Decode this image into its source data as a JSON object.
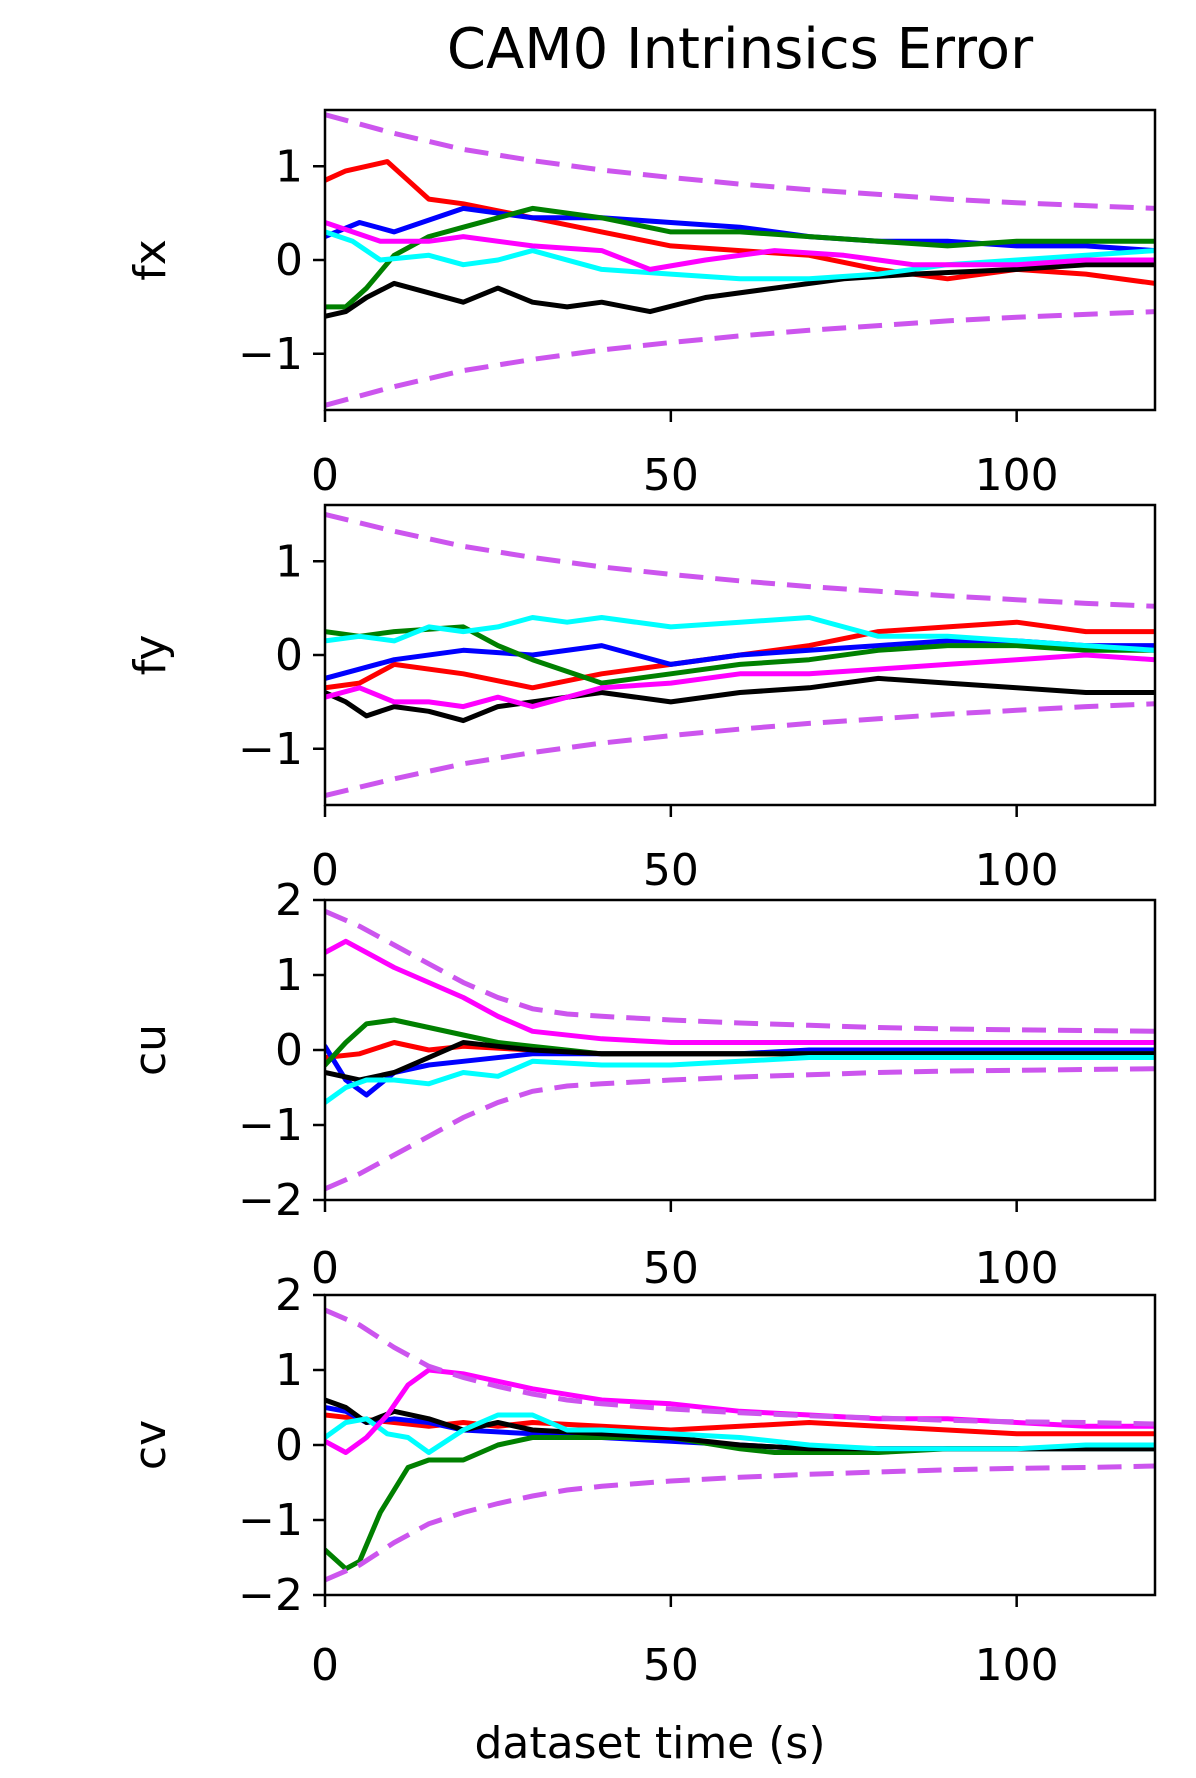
{
  "figure_title": "CAM0 Intrinsics Error",
  "chart_data": [
    {
      "type": "line",
      "ylabel": "fx",
      "xlabel": "",
      "xlim": [
        0,
        120
      ],
      "ylim": [
        -1.6,
        1.6
      ],
      "xticks": [
        0,
        50,
        100
      ],
      "yticks": [
        -1,
        0,
        1
      ],
      "bound_color": "#cc55ee",
      "bounds": {
        "x": [
          0,
          10,
          20,
          30,
          40,
          50,
          60,
          70,
          80,
          90,
          100,
          110,
          120
        ],
        "upper": [
          1.55,
          1.35,
          1.18,
          1.06,
          0.96,
          0.88,
          0.81,
          0.75,
          0.7,
          0.65,
          0.61,
          0.58,
          0.55
        ]
      },
      "series": [
        {
          "color": "#ff0000",
          "x": [
            0,
            3,
            6,
            9,
            12,
            15,
            20,
            30,
            40,
            50,
            60,
            70,
            80,
            90,
            100,
            110,
            120
          ],
          "y": [
            0.85,
            0.95,
            1.0,
            1.05,
            0.85,
            0.65,
            0.6,
            0.45,
            0.3,
            0.15,
            0.1,
            0.05,
            -0.1,
            -0.2,
            -0.1,
            -0.15,
            -0.25
          ]
        },
        {
          "color": "#0000ff",
          "x": [
            0,
            5,
            10,
            20,
            30,
            40,
            50,
            60,
            70,
            80,
            90,
            100,
            110,
            120
          ],
          "y": [
            0.25,
            0.4,
            0.3,
            0.55,
            0.45,
            0.45,
            0.4,
            0.35,
            0.25,
            0.2,
            0.2,
            0.15,
            0.15,
            0.1
          ]
        },
        {
          "color": "#008000",
          "x": [
            0,
            3,
            6,
            10,
            15,
            20,
            25,
            30,
            40,
            50,
            60,
            70,
            80,
            90,
            100,
            110,
            120
          ],
          "y": [
            -0.5,
            -0.5,
            -0.3,
            0.05,
            0.25,
            0.35,
            0.45,
            0.55,
            0.45,
            0.3,
            0.3,
            0.25,
            0.2,
            0.15,
            0.2,
            0.2,
            0.2
          ]
        },
        {
          "color": "#000000",
          "x": [
            0,
            3,
            6,
            10,
            15,
            20,
            25,
            30,
            35,
            40,
            47,
            55,
            65,
            75,
            85,
            100,
            110,
            120
          ],
          "y": [
            -0.6,
            -0.55,
            -0.4,
            -0.25,
            -0.35,
            -0.45,
            -0.3,
            -0.45,
            -0.5,
            -0.45,
            -0.55,
            -0.4,
            -0.3,
            -0.2,
            -0.15,
            -0.1,
            -0.05,
            -0.05
          ]
        },
        {
          "color": "#00ffff",
          "x": [
            0,
            4,
            8,
            15,
            20,
            25,
            30,
            40,
            50,
            60,
            70,
            80,
            90,
            100,
            110,
            120
          ],
          "y": [
            0.3,
            0.2,
            0.0,
            0.05,
            -0.05,
            0.0,
            0.1,
            -0.1,
            -0.15,
            -0.2,
            -0.2,
            -0.15,
            -0.05,
            0.0,
            0.05,
            0.1
          ]
        },
        {
          "color": "#ff00ff",
          "x": [
            0,
            4,
            8,
            15,
            20,
            30,
            40,
            47,
            55,
            65,
            75,
            85,
            100,
            110,
            120
          ],
          "y": [
            0.4,
            0.3,
            0.2,
            0.2,
            0.25,
            0.15,
            0.1,
            -0.1,
            0.0,
            0.1,
            0.05,
            -0.05,
            -0.05,
            0.0,
            0.0
          ]
        }
      ]
    },
    {
      "type": "line",
      "ylabel": "fy",
      "xlabel": "",
      "xlim": [
        0,
        120
      ],
      "ylim": [
        -1.6,
        1.6
      ],
      "xticks": [
        0,
        50,
        100
      ],
      "yticks": [
        -1,
        0,
        1
      ],
      "bound_color": "#cc55ee",
      "bounds": {
        "x": [
          0,
          10,
          20,
          30,
          40,
          50,
          60,
          70,
          80,
          90,
          100,
          110,
          120
        ],
        "upper": [
          1.5,
          1.32,
          1.16,
          1.04,
          0.94,
          0.86,
          0.79,
          0.73,
          0.68,
          0.63,
          0.59,
          0.55,
          0.52
        ]
      },
      "series": [
        {
          "color": "#ff0000",
          "x": [
            0,
            5,
            10,
            20,
            30,
            40,
            50,
            60,
            70,
            80,
            90,
            100,
            110,
            120
          ],
          "y": [
            -0.35,
            -0.3,
            -0.1,
            -0.2,
            -0.35,
            -0.2,
            -0.1,
            0.0,
            0.1,
            0.25,
            0.3,
            0.35,
            0.25,
            0.25
          ]
        },
        {
          "color": "#0000ff",
          "x": [
            0,
            5,
            10,
            20,
            30,
            40,
            50,
            60,
            70,
            80,
            90,
            100,
            110,
            120
          ],
          "y": [
            -0.25,
            -0.15,
            -0.05,
            0.05,
            0.0,
            0.1,
            -0.1,
            0.0,
            0.05,
            0.1,
            0.15,
            0.15,
            0.1,
            0.1
          ]
        },
        {
          "color": "#008000",
          "x": [
            0,
            5,
            10,
            20,
            25,
            30,
            40,
            50,
            60,
            70,
            80,
            90,
            100,
            110,
            120
          ],
          "y": [
            0.25,
            0.2,
            0.25,
            0.3,
            0.1,
            -0.05,
            -0.3,
            -0.2,
            -0.1,
            -0.05,
            0.05,
            0.1,
            0.1,
            0.05,
            0.05
          ]
        },
        {
          "color": "#000000",
          "x": [
            0,
            3,
            6,
            10,
            15,
            20,
            25,
            30,
            40,
            50,
            60,
            70,
            80,
            90,
            100,
            110,
            120
          ],
          "y": [
            -0.4,
            -0.5,
            -0.65,
            -0.55,
            -0.6,
            -0.7,
            -0.55,
            -0.5,
            -0.4,
            -0.5,
            -0.4,
            -0.35,
            -0.25,
            -0.3,
            -0.35,
            -0.4,
            -0.4
          ]
        },
        {
          "color": "#00ffff",
          "x": [
            0,
            5,
            10,
            15,
            20,
            25,
            30,
            35,
            40,
            50,
            60,
            70,
            80,
            90,
            100,
            110,
            120
          ],
          "y": [
            0.15,
            0.2,
            0.15,
            0.3,
            0.25,
            0.3,
            0.4,
            0.35,
            0.4,
            0.3,
            0.35,
            0.4,
            0.2,
            0.2,
            0.15,
            0.1,
            0.05
          ]
        },
        {
          "color": "#ff00ff",
          "x": [
            0,
            5,
            10,
            15,
            20,
            25,
            30,
            40,
            50,
            60,
            70,
            80,
            90,
            100,
            110,
            120
          ],
          "y": [
            -0.45,
            -0.35,
            -0.5,
            -0.5,
            -0.55,
            -0.45,
            -0.55,
            -0.35,
            -0.3,
            -0.2,
            -0.2,
            -0.15,
            -0.1,
            -0.05,
            0.0,
            -0.05
          ]
        }
      ]
    },
    {
      "type": "line",
      "ylabel": "cu",
      "xlabel": "",
      "xlim": [
        0,
        120
      ],
      "ylim": [
        -2,
        2
      ],
      "xticks": [
        0,
        50,
        100
      ],
      "yticks": [
        -2,
        -1,
        0,
        1,
        2
      ],
      "bound_color": "#cc55ee",
      "bounds": {
        "x": [
          0,
          5,
          10,
          15,
          20,
          25,
          30,
          35,
          40,
          50,
          60,
          70,
          80,
          90,
          100,
          110,
          120
        ],
        "upper": [
          1.85,
          1.65,
          1.4,
          1.15,
          0.9,
          0.7,
          0.55,
          0.48,
          0.45,
          0.4,
          0.36,
          0.33,
          0.3,
          0.28,
          0.27,
          0.26,
          0.25
        ]
      },
      "series": [
        {
          "color": "#ff0000",
          "x": [
            0,
            5,
            10,
            15,
            20,
            30,
            40,
            50,
            60,
            70,
            80,
            90,
            100,
            110,
            120
          ],
          "y": [
            -0.1,
            -0.05,
            0.1,
            0.0,
            0.05,
            0.0,
            -0.05,
            -0.05,
            -0.05,
            -0.05,
            -0.05,
            -0.05,
            -0.05,
            -0.05,
            -0.05
          ]
        },
        {
          "color": "#0000ff",
          "x": [
            0,
            3,
            6,
            10,
            15,
            20,
            30,
            40,
            50,
            60,
            70,
            80,
            90,
            100,
            110,
            120
          ],
          "y": [
            0.05,
            -0.4,
            -0.6,
            -0.3,
            -0.2,
            -0.15,
            -0.05,
            -0.05,
            -0.05,
            -0.05,
            0.0,
            0.0,
            0.0,
            0.0,
            0.0,
            0.0
          ]
        },
        {
          "color": "#008000",
          "x": [
            0,
            3,
            6,
            10,
            15,
            20,
            25,
            30,
            40,
            50,
            60,
            70,
            80,
            90,
            100,
            110,
            120
          ],
          "y": [
            -0.2,
            0.1,
            0.35,
            0.4,
            0.3,
            0.2,
            0.1,
            0.05,
            -0.05,
            -0.05,
            -0.05,
            -0.05,
            -0.05,
            -0.05,
            -0.05,
            -0.05,
            -0.05
          ]
        },
        {
          "color": "#000000",
          "x": [
            0,
            5,
            10,
            15,
            20,
            25,
            30,
            40,
            50,
            60,
            70,
            80,
            90,
            100,
            110,
            120
          ],
          "y": [
            -0.3,
            -0.4,
            -0.3,
            -0.1,
            0.1,
            0.05,
            0.0,
            -0.05,
            -0.05,
            -0.05,
            -0.05,
            -0.05,
            -0.05,
            -0.05,
            -0.05,
            -0.05
          ]
        },
        {
          "color": "#00ffff",
          "x": [
            0,
            3,
            6,
            10,
            15,
            20,
            25,
            30,
            40,
            50,
            60,
            70,
            80,
            90,
            100,
            110,
            120
          ],
          "y": [
            -0.7,
            -0.5,
            -0.4,
            -0.4,
            -0.45,
            -0.3,
            -0.35,
            -0.15,
            -0.2,
            -0.2,
            -0.15,
            -0.1,
            -0.1,
            -0.1,
            -0.1,
            -0.1,
            -0.1
          ]
        },
        {
          "color": "#ff00ff",
          "x": [
            0,
            3,
            6,
            10,
            15,
            20,
            25,
            30,
            40,
            50,
            60,
            70,
            80,
            90,
            100,
            110,
            120
          ],
          "y": [
            1.3,
            1.45,
            1.3,
            1.1,
            0.9,
            0.7,
            0.45,
            0.25,
            0.15,
            0.1,
            0.1,
            0.1,
            0.1,
            0.1,
            0.1,
            0.1,
            0.1
          ]
        }
      ]
    },
    {
      "type": "line",
      "ylabel": "cv",
      "xlabel": "dataset time (s)",
      "xlim": [
        0,
        120
      ],
      "ylim": [
        -2,
        2
      ],
      "xticks": [
        0,
        50,
        100
      ],
      "yticks": [
        -2,
        -1,
        0,
        1,
        2
      ],
      "bound_color": "#cc55ee",
      "bounds": {
        "x": [
          0,
          5,
          10,
          15,
          20,
          25,
          30,
          35,
          40,
          50,
          60,
          70,
          80,
          90,
          100,
          110,
          120
        ],
        "upper": [
          1.8,
          1.6,
          1.3,
          1.05,
          0.9,
          0.78,
          0.68,
          0.6,
          0.55,
          0.48,
          0.43,
          0.39,
          0.36,
          0.33,
          0.31,
          0.3,
          0.28
        ]
      },
      "series": [
        {
          "color": "#ff0000",
          "x": [
            0,
            5,
            10,
            15,
            20,
            25,
            30,
            40,
            50,
            60,
            70,
            80,
            90,
            100,
            110,
            120
          ],
          "y": [
            0.4,
            0.35,
            0.3,
            0.25,
            0.3,
            0.25,
            0.3,
            0.25,
            0.2,
            0.25,
            0.3,
            0.25,
            0.2,
            0.15,
            0.15,
            0.15
          ]
        },
        {
          "color": "#0000ff",
          "x": [
            0,
            3,
            6,
            10,
            15,
            20,
            30,
            40,
            50,
            60,
            70,
            80,
            90,
            100,
            110,
            120
          ],
          "y": [
            0.5,
            0.45,
            0.3,
            0.35,
            0.3,
            0.2,
            0.15,
            0.1,
            0.05,
            0.0,
            -0.05,
            -0.05,
            -0.05,
            -0.05,
            -0.05,
            -0.05
          ]
        },
        {
          "color": "#008000",
          "x": [
            0,
            3,
            5,
            8,
            12,
            15,
            20,
            25,
            30,
            40,
            50,
            60,
            65,
            70,
            80,
            90,
            100,
            110,
            120
          ],
          "y": [
            -1.4,
            -1.65,
            -1.55,
            -0.9,
            -0.3,
            -0.2,
            -0.2,
            0.0,
            0.1,
            0.1,
            0.1,
            -0.05,
            -0.1,
            -0.1,
            -0.1,
            -0.05,
            -0.05,
            -0.05,
            -0.05
          ]
        },
        {
          "color": "#000000",
          "x": [
            0,
            3,
            6,
            10,
            15,
            20,
            25,
            30,
            40,
            50,
            60,
            70,
            80,
            90,
            100,
            110,
            120
          ],
          "y": [
            0.6,
            0.5,
            0.3,
            0.45,
            0.35,
            0.2,
            0.3,
            0.2,
            0.15,
            0.1,
            0.0,
            -0.05,
            -0.05,
            -0.05,
            -0.05,
            -0.05,
            -0.05
          ]
        },
        {
          "color": "#00ffff",
          "x": [
            0,
            3,
            6,
            9,
            12,
            15,
            20,
            25,
            30,
            35,
            40,
            50,
            60,
            70,
            80,
            90,
            100,
            110,
            120
          ],
          "y": [
            0.1,
            0.3,
            0.35,
            0.15,
            0.1,
            -0.1,
            0.2,
            0.4,
            0.4,
            0.2,
            0.2,
            0.15,
            0.1,
            0.0,
            -0.05,
            -0.05,
            -0.05,
            0.0,
            0.0
          ]
        },
        {
          "color": "#ff00ff",
          "x": [
            0,
            3,
            6,
            9,
            12,
            15,
            20,
            25,
            30,
            40,
            50,
            60,
            70,
            80,
            90,
            100,
            110,
            120
          ],
          "y": [
            0.05,
            -0.1,
            0.1,
            0.4,
            0.8,
            1.0,
            0.95,
            0.85,
            0.75,
            0.6,
            0.55,
            0.45,
            0.4,
            0.35,
            0.35,
            0.3,
            0.25,
            0.25
          ]
        }
      ]
    }
  ]
}
